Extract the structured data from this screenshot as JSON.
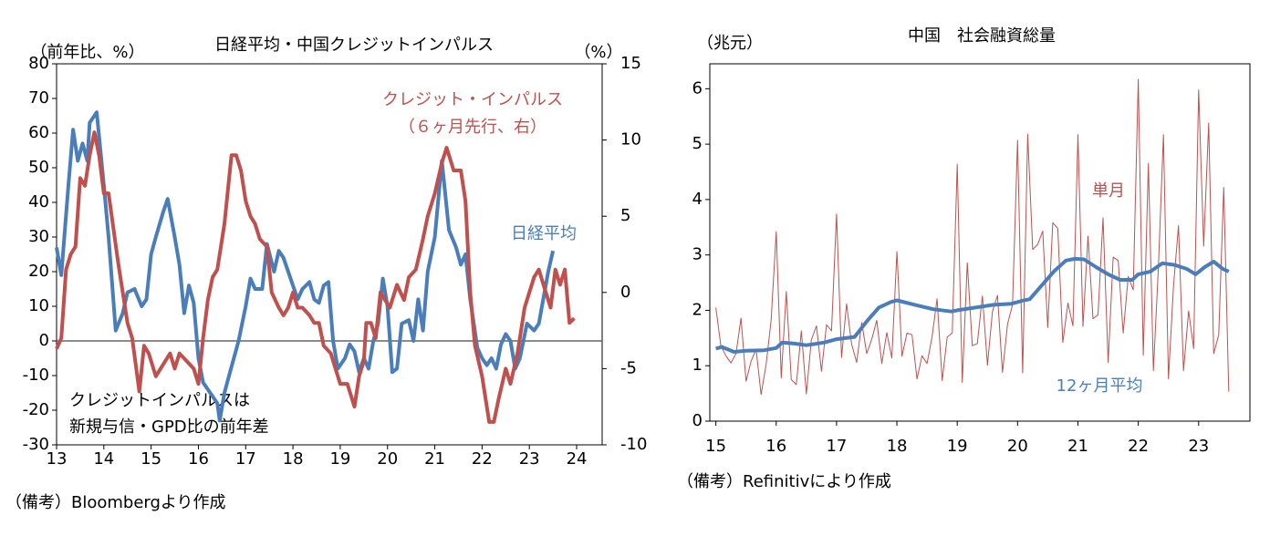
{
  "chart_data": [
    {
      "type": "line",
      "title": "日経平均・中国クレジットインパルス",
      "y_label": "（前年比、%）",
      "y2_label": "（%）",
      "annotations": [
        "クレジット・インパルス",
        "（６ヶ月先行、右）",
        "日経平均",
        "クレジットインパルスは",
        "新規与信・GPD比の前年差"
      ],
      "source": "（備考）Bloombergより作成",
      "xlim": [
        13,
        24.54
      ],
      "xticks": [
        13,
        14,
        15,
        16,
        17,
        18,
        19,
        20,
        21,
        22,
        23,
        24
      ],
      "ylim": [
        -30,
        80
      ],
      "yticks": [
        -30,
        -20,
        -10,
        0,
        10,
        20,
        30,
        40,
        50,
        60,
        70,
        80
      ],
      "y2lim": [
        -10,
        15
      ],
      "y2ticks": [
        -10,
        -5,
        0,
        5,
        10,
        15
      ],
      "zero_line": true,
      "series": [
        {
          "name": "日経平均",
          "color": "#4a7ebb",
          "x": [
            13.0,
            13.1,
            13.25,
            13.35,
            13.45,
            13.55,
            13.65,
            13.7,
            13.85,
            14.0,
            14.1,
            14.25,
            14.4,
            14.5,
            14.65,
            14.8,
            14.9,
            15.0,
            15.1,
            15.25,
            15.35,
            15.5,
            15.6,
            15.7,
            15.8,
            15.9,
            16.0,
            16.1,
            16.25,
            16.4,
            16.45,
            16.55,
            16.65,
            16.75,
            16.85,
            17.0,
            17.1,
            17.2,
            17.35,
            17.45,
            17.6,
            17.7,
            17.8,
            17.95,
            18.1,
            18.2,
            18.35,
            18.45,
            18.55,
            18.65,
            18.75,
            18.85,
            18.95,
            19.1,
            19.2,
            19.3,
            19.4,
            19.5,
            19.6,
            19.7,
            19.8,
            19.9,
            20.0,
            20.1,
            20.2,
            20.3,
            20.45,
            20.55,
            20.65,
            20.75,
            20.85,
            21.0,
            21.15,
            21.3,
            21.45,
            21.55,
            21.65,
            21.75,
            21.9,
            22.0,
            22.1,
            22.2,
            22.3,
            22.4,
            22.5,
            22.6,
            22.7,
            22.8,
            22.95,
            23.1,
            23.2,
            23.4,
            23.5
          ],
          "values": [
            27,
            19,
            45,
            61,
            52,
            57,
            52,
            63,
            66,
            45,
            30,
            3,
            8,
            14,
            15,
            10,
            12,
            25,
            30,
            37,
            41,
            30,
            22,
            8,
            16,
            11,
            -5,
            -12,
            -15,
            -18,
            -23,
            -15,
            -10,
            -5,
            0,
            10,
            18,
            15,
            15,
            28,
            20,
            26,
            24,
            18,
            12,
            15,
            17,
            12,
            11,
            16,
            17,
            0,
            -8,
            -5,
            -1,
            -3,
            -9,
            -5,
            -8,
            0,
            5,
            18,
            10,
            -9,
            -8,
            5,
            6,
            0,
            12,
            3,
            20,
            30,
            52,
            32,
            27,
            22,
            25,
            12,
            -2,
            -5,
            -7,
            -5,
            -8,
            -1,
            2,
            0,
            -8,
            -5,
            5,
            3,
            5,
            20,
            26
          ]
        },
        {
          "name": "クレジット・インパルス",
          "color": "#c0504d",
          "axis": "y2",
          "x": [
            13.0,
            13.1,
            13.2,
            13.3,
            13.4,
            13.5,
            13.6,
            13.7,
            13.8,
            13.9,
            14.0,
            14.1,
            14.3,
            14.5,
            14.6,
            14.75,
            14.85,
            14.95,
            15.1,
            15.2,
            15.3,
            15.4,
            15.5,
            15.6,
            15.75,
            15.9,
            16.0,
            16.1,
            16.2,
            16.3,
            16.4,
            16.55,
            16.7,
            16.8,
            16.9,
            17.0,
            17.1,
            17.2,
            17.3,
            17.45,
            17.55,
            17.7,
            17.8,
            17.9,
            18.0,
            18.1,
            18.2,
            18.35,
            18.45,
            18.55,
            18.65,
            18.8,
            18.9,
            19.0,
            19.15,
            19.3,
            19.4,
            19.5,
            19.55,
            19.65,
            19.75,
            19.85,
            19.95,
            20.05,
            20.2,
            20.35,
            20.45,
            20.6,
            20.75,
            20.85,
            21.0,
            21.15,
            21.25,
            21.4,
            21.55,
            21.65,
            21.75,
            21.85,
            22.0,
            22.15,
            22.25,
            22.35,
            22.5,
            22.6,
            22.75,
            22.9,
            23.1,
            23.2,
            23.3,
            23.45,
            23.55,
            23.65,
            23.75,
            23.85,
            23.95
          ],
          "values": [
            -3.7,
            -3,
            1.5,
            2.5,
            3,
            7.5,
            7,
            9,
            10.5,
            9,
            6.5,
            6.5,
            2,
            -2,
            -3,
            -6.5,
            -3.5,
            -4,
            -5.5,
            -5,
            -4.5,
            -4,
            -5,
            -4,
            -4.5,
            -5,
            -6,
            -3,
            -0.5,
            1,
            1.5,
            4.5,
            9,
            9,
            8,
            6,
            5,
            4.5,
            3.5,
            3,
            0,
            -1,
            -1.5,
            -1,
            0,
            -1,
            -1,
            -1.5,
            -2,
            -2,
            -3.5,
            -4,
            -5,
            -6,
            -6,
            -7.5,
            -5.5,
            -4.5,
            -2,
            -2,
            -3,
            0,
            -0.5,
            -1,
            0.5,
            -0.5,
            1,
            1.5,
            3.5,
            5,
            6.5,
            8.5,
            9.5,
            8,
            8,
            6,
            0,
            -3.5,
            -5.5,
            -8.5,
            -8.5,
            -7,
            -5,
            -6,
            -4,
            -1,
            1,
            1.5,
            0.5,
            -1,
            1.5,
            0.5,
            1.5,
            -2,
            -1.7
          ]
        }
      ]
    },
    {
      "type": "line",
      "title": "中国　社会融資総量",
      "y_label": "（兆元）",
      "annotations": [
        "単月",
        "12ヶ月平均"
      ],
      "source": "（備考）Refinitivにより作成",
      "xlim": [
        14.9,
        23.85
      ],
      "xticks": [
        15,
        16,
        17,
        18,
        19,
        20,
        21,
        22,
        23
      ],
      "ylim": [
        0,
        6.45
      ],
      "yticks": [
        0,
        1,
        2,
        3,
        4,
        5,
        6
      ],
      "series": [
        {
          "name": "単月",
          "color": "#c0504d",
          "width": 1,
          "x_start": 15,
          "x_step_months": 12,
          "values": [
            2.05,
            1.36,
            1.18,
            1.05,
            1.22,
            1.86,
            0.72,
            1.08,
            1.3,
            0.48,
            1.02,
            1.82,
            3.42,
            0.78,
            2.34,
            0.75,
            0.66,
            1.63,
            0.49,
            1.47,
            1.72,
            0.9,
            1.74,
            1.63,
            3.74,
            1.15,
            2.12,
            1.39,
            1.06,
            1.78,
            1.22,
            1.48,
            1.82,
            1.04,
            1.6,
            1.14,
            3.06,
            1.17,
            1.59,
            1.56,
            0.76,
            1.18,
            1.04,
            1.52,
            2.21,
            0.73,
            1.52,
            1.59,
            4.64,
            0.7,
            2.86,
            1.36,
            1.4,
            2.26,
            1.01,
            1.98,
            2.27,
            0.88,
            1.75,
            2.1,
            5.07,
            0.87,
            5.18,
            3.1,
            3.19,
            3.43,
            1.69,
            3.58,
            3.48,
            1.42,
            2.13,
            1.72,
            5.17,
            1.71,
            3.34,
            1.85,
            1.92,
            3.67,
            1.06,
            2.96,
            2.9,
            1.59,
            2.61,
            2.37,
            6.17,
            1.19,
            4.65,
            0.91,
            2.79,
            5.17,
            0.76,
            2.43,
            3.53,
            0.91,
            1.99,
            1.31,
            5.98,
            3.16,
            5.38,
            1.22,
            1.56,
            4.22,
            0.53
          ]
        },
        {
          "name": "12ヶ月平均",
          "color": "#4a7ebb",
          "width": 4,
          "x": [
            15.0,
            15.1,
            15.3,
            15.5,
            15.8,
            16.0,
            16.1,
            16.3,
            16.5,
            16.8,
            17.0,
            17.3,
            17.5,
            17.7,
            17.9,
            18.0,
            18.3,
            18.6,
            18.9,
            19.0,
            19.3,
            19.6,
            19.9,
            20.1,
            20.2,
            20.4,
            20.6,
            20.8,
            20.95,
            21.1,
            21.3,
            21.5,
            21.7,
            21.9,
            22.0,
            22.2,
            22.4,
            22.6,
            22.8,
            22.95,
            23.1,
            23.25,
            23.4,
            23.5
          ],
          "values": [
            1.31,
            1.34,
            1.25,
            1.27,
            1.28,
            1.32,
            1.42,
            1.4,
            1.37,
            1.42,
            1.48,
            1.52,
            1.8,
            2.05,
            2.15,
            2.18,
            2.1,
            2.02,
            1.98,
            2.0,
            2.05,
            2.1,
            2.12,
            2.18,
            2.2,
            2.45,
            2.7,
            2.9,
            2.93,
            2.92,
            2.78,
            2.65,
            2.55,
            2.55,
            2.65,
            2.7,
            2.85,
            2.82,
            2.75,
            2.65,
            2.78,
            2.88,
            2.75,
            2.7
          ]
        }
      ]
    }
  ]
}
